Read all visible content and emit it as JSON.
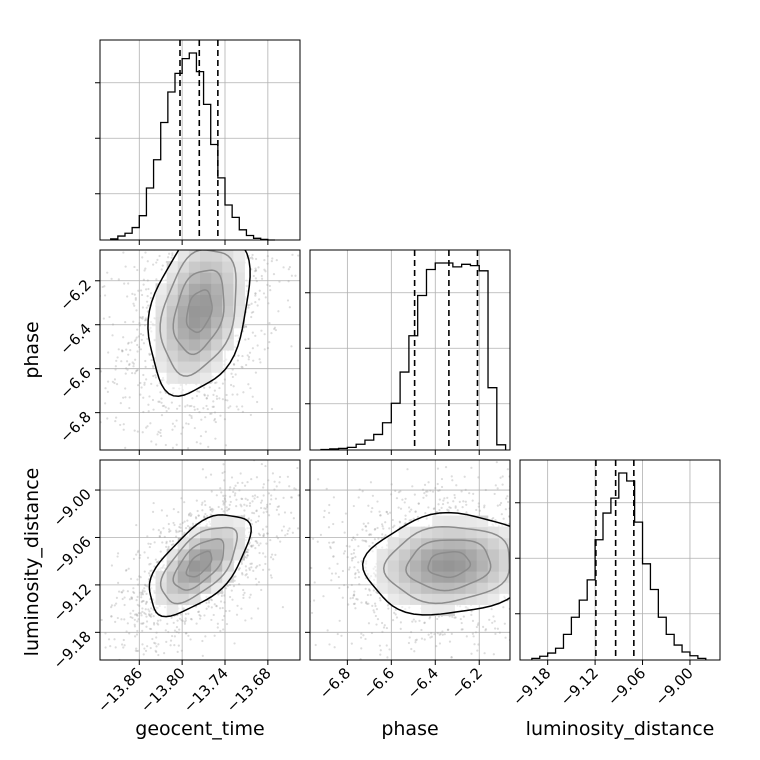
{
  "chart_data": {
    "type": "corner",
    "grid": true,
    "colors": {
      "hist": "#000000",
      "points": "#9a9a9a",
      "frame": "#000000",
      "grid": "#b0b0b0"
    },
    "parameters": [
      {
        "name": "geocent_time",
        "xlabel": "geocent_time",
        "range": [
          -13.915,
          -13.635
        ],
        "ticks": [
          -13.86,
          -13.8,
          -13.74,
          -13.68
        ],
        "tick_labels": [
          "−13.86",
          "−13.80",
          "−13.74",
          "−13.68"
        ],
        "quantiles": [
          -13.803,
          -13.776,
          -13.75
        ],
        "hist": {
          "edges": [
            -13.9,
            -13.89,
            -13.88,
            -13.87,
            -13.86,
            -13.85,
            -13.84,
            -13.83,
            -13.82,
            -13.81,
            -13.8,
            -13.79,
            -13.78,
            -13.77,
            -13.76,
            -13.75,
            -13.74,
            -13.73,
            -13.72,
            -13.71,
            -13.7,
            -13.69,
            -13.68,
            -13.67
          ],
          "counts": [
            2,
            7,
            12,
            22,
            43,
            92,
            142,
            208,
            262,
            295,
            321,
            331,
            298,
            240,
            169,
            110,
            62,
            40,
            18,
            8,
            3,
            1,
            0
          ]
        }
      },
      {
        "name": "phase",
        "xlabel": "phase",
        "ylabel": "phase",
        "range": [
          -6.97,
          -6.06
        ],
        "ticks": [
          -6.8,
          -6.6,
          -6.4,
          -6.2
        ],
        "tick_labels": [
          "−6.8",
          "−6.6",
          "−6.4",
          "−6.2"
        ],
        "quantiles": [
          -6.494,
          -6.338,
          -6.208
        ],
        "hist": {
          "edges": [
            -6.92,
            -6.88,
            -6.84,
            -6.8,
            -6.76,
            -6.72,
            -6.68,
            -6.64,
            -6.6,
            -6.56,
            -6.52,
            -6.48,
            -6.44,
            -6.4,
            -6.36,
            -6.32,
            -6.28,
            -6.24,
            -6.2,
            -6.16,
            -6.12,
            -6.08
          ],
          "counts": [
            2,
            4,
            6,
            10,
            22,
            38,
            60,
            105,
            180,
            300,
            440,
            595,
            695,
            720,
            720,
            705,
            715,
            710,
            690,
            240,
            20
          ]
        }
      },
      {
        "name": "luminosity_distance",
        "xlabel": "luminosity_distance",
        "ylabel": "luminosity_distance",
        "range": [
          -9.215,
          -8.962
        ],
        "ticks": [
          -9.18,
          -9.12,
          -9.06,
          -9.0
        ],
        "tick_labels": [
          "−9.18",
          "−9.12",
          "−9.06",
          "−9.00"
        ],
        "quantiles": [
          -9.119,
          -9.094,
          -9.071
        ],
        "hist": {
          "edges": [
            -9.2,
            -9.19,
            -9.18,
            -9.17,
            -9.16,
            -9.15,
            -9.14,
            -9.13,
            -9.12,
            -9.11,
            -9.1,
            -9.09,
            -9.08,
            -9.07,
            -9.06,
            -9.05,
            -9.04,
            -9.03,
            -9.02,
            -9.01,
            -9.0,
            -8.99,
            -8.98
          ],
          "counts": [
            3,
            7,
            13,
            22,
            48,
            80,
            112,
            150,
            225,
            275,
            303,
            350,
            335,
            258,
            180,
            132,
            80,
            48,
            28,
            15,
            8,
            3
          ]
        }
      }
    ],
    "pairs": [
      {
        "x": "geocent_time",
        "y": "phase",
        "correlation": 0.3
      },
      {
        "x": "geocent_time",
        "y": "luminosity_distance",
        "correlation": 0.6
      },
      {
        "x": "phase",
        "y": "luminosity_distance",
        "correlation": 0.1
      }
    ]
  }
}
